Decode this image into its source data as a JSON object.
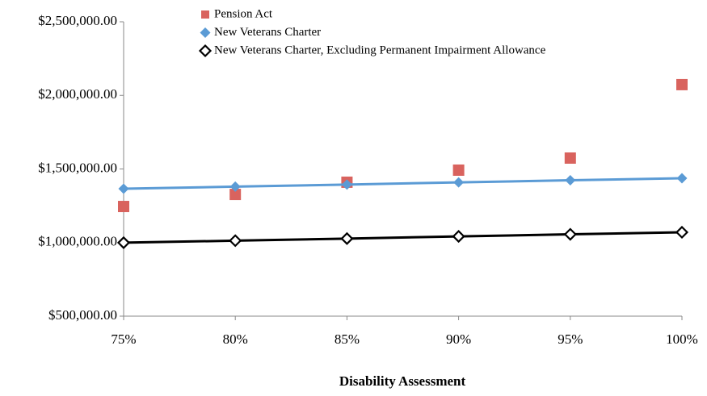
{
  "chart_data": {
    "type": "line",
    "x_label": "Disability Assessment",
    "categories": [
      "75%",
      "80%",
      "85%",
      "90%",
      "95%",
      "100%"
    ],
    "ylim": [
      500000,
      2500000
    ],
    "yticks": [
      {
        "value": 500000,
        "label": "$500,000.00"
      },
      {
        "value": 1000000,
        "label": "$1,000,000.00"
      },
      {
        "value": 1500000,
        "label": "$1,500,000.00"
      },
      {
        "value": 2000000,
        "label": "$2,000,000.00"
      },
      {
        "value": 2500000,
        "label": "$2,500,000.00"
      }
    ],
    "grid": false,
    "legend": "top",
    "series": [
      {
        "name": "Pension Act",
        "color": "#d9635e",
        "marker": "square",
        "line": false,
        "values": [
          1245000,
          1327000,
          1410000,
          1492000,
          1574000,
          2073000
        ]
      },
      {
        "name": "New Veterans Charter",
        "color": "#5b9bd5",
        "marker": "diamond",
        "line": true,
        "values": [
          1366000,
          1380000,
          1394000,
          1409000,
          1423000,
          1437000
        ]
      },
      {
        "name": "New Veterans Charter, Excluding Permanent Impairment Allowance",
        "color": "#000000",
        "marker": "diamond-open",
        "line": true,
        "values": [
          999000,
          1013000,
          1027000,
          1042000,
          1056000,
          1070000
        ]
      }
    ]
  }
}
